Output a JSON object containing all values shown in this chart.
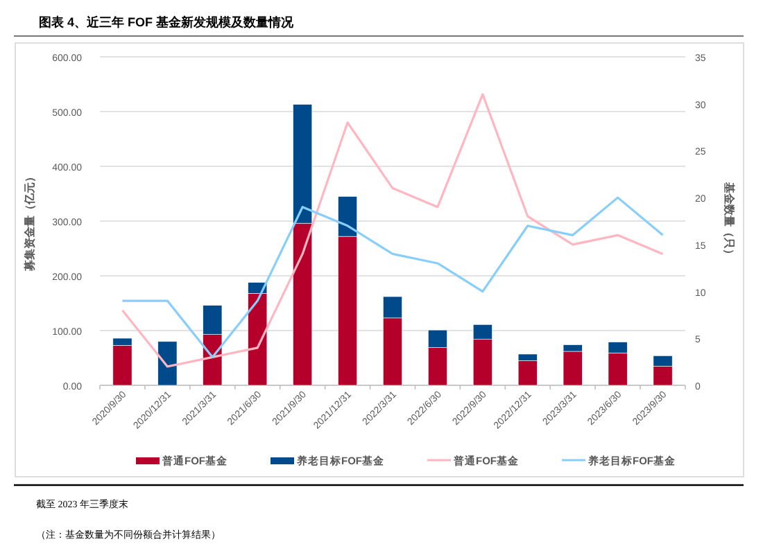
{
  "chart_data": {
    "type": "bar",
    "title": "图表 4、近三年 FOF 基金新发规模及数量情况",
    "ylabel": "募集资金量（亿元）",
    "y2label": "基金数量（只）",
    "categories": [
      "2020/9/30",
      "2020/12/31",
      "2021/3/31",
      "2021/6/30",
      "2021/9/30",
      "2021/12/31",
      "2022/3/31",
      "2022/6/30",
      "2022/9/30",
      "2022/12/31",
      "2023/3/31",
      "2023/6/30",
      "2023/9/30"
    ],
    "stacked": true,
    "series": [
      {
        "name": "普通FOF基金",
        "color": "#b5002b",
        "values": [
          73,
          0,
          93,
          168,
          296,
          272,
          123,
          69,
          84,
          45,
          62,
          59,
          35
        ]
      },
      {
        "name": "养老目标FOF基金",
        "color": "#004a8c",
        "values": [
          13,
          80,
          53,
          20,
          217,
          73,
          39,
          32,
          27,
          12,
          12,
          20,
          19
        ]
      },
      {
        "name": "普通FOF基金",
        "type": "line",
        "axis": "y2",
        "color": "#ffb6c1",
        "values": [
          8,
          2,
          3,
          4,
          14,
          28,
          21,
          19,
          31,
          18,
          15,
          16,
          14
        ]
      },
      {
        "name": "养老目标FOF基金",
        "type": "line",
        "axis": "y2",
        "color": "#87cefa",
        "values": [
          9,
          9,
          3,
          9,
          19,
          17,
          14,
          13,
          10,
          17,
          16,
          20,
          16
        ]
      }
    ],
    "ylim": [
      0,
      600
    ],
    "yticks": [
      {
        "value": 0,
        "label": "0.00"
      },
      {
        "value": 100,
        "label": "100.00"
      },
      {
        "value": 200,
        "label": "200.00"
      },
      {
        "value": 300,
        "label": "300.00"
      },
      {
        "value": 400,
        "label": "400.00"
      },
      {
        "value": 500,
        "label": "500.00"
      },
      {
        "value": 600,
        "label": "600.00"
      }
    ],
    "y2lim": [
      0,
      35
    ],
    "y2ticks": [
      0,
      5,
      10,
      15,
      20,
      25,
      30,
      35
    ],
    "grid": "y",
    "legend": "bottom",
    "annotations": [
      "截至 2023 年三季度末",
      "（注：基金数量为不同份额合并计算结果）"
    ]
  }
}
